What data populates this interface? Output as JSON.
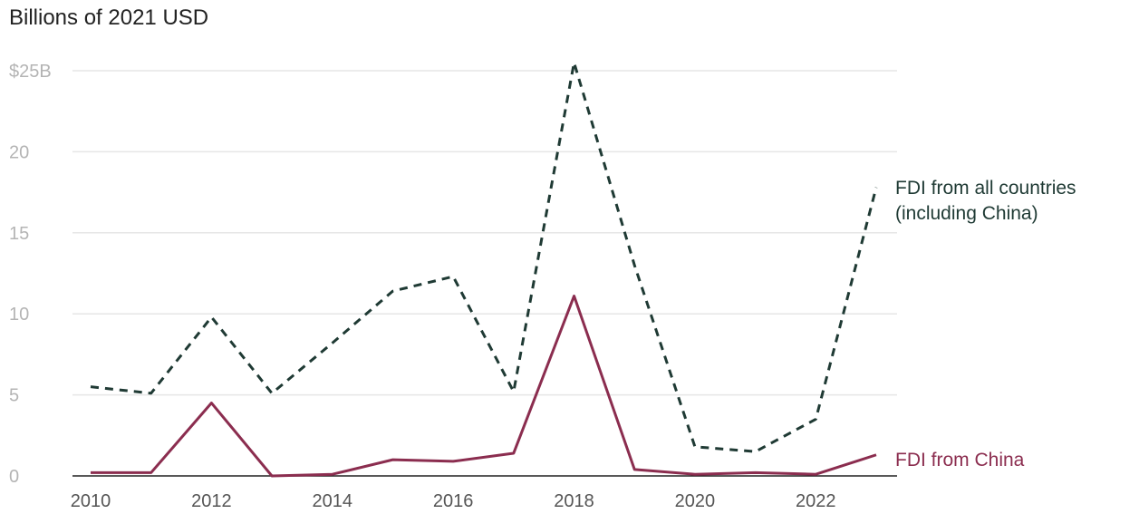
{
  "chart_data": {
    "type": "line",
    "unit_label": "Billions of 2021 USD",
    "x": [
      2010,
      2011,
      2012,
      2013,
      2014,
      2015,
      2016,
      2017,
      2018,
      2019,
      2020,
      2021,
      2022,
      2023
    ],
    "x_tick_labels": [
      "2010",
      "2012",
      "2014",
      "2016",
      "2018",
      "2020",
      "2022"
    ],
    "y_tick_labels": [
      "0",
      "5",
      "10",
      "15",
      "20",
      "$25B"
    ],
    "ylim": [
      0,
      25
    ],
    "grid": true,
    "series": [
      {
        "name_lines": [
          "FDI from all countries",
          "(including China)"
        ],
        "style": "dashed",
        "color": "#1f3a34",
        "values": [
          5.5,
          5.1,
          9.8,
          5.1,
          8.2,
          11.4,
          12.3,
          5.2,
          25.5,
          13.0,
          1.8,
          1.5,
          3.5,
          17.8
        ]
      },
      {
        "name": "FDI from China",
        "style": "solid",
        "color": "#8b2d4f",
        "values": [
          0.2,
          0.2,
          4.5,
          0.0,
          0.1,
          1.0,
          0.9,
          1.4,
          11.1,
          0.4,
          0.1,
          0.2,
          0.1,
          1.3
        ]
      }
    ]
  }
}
